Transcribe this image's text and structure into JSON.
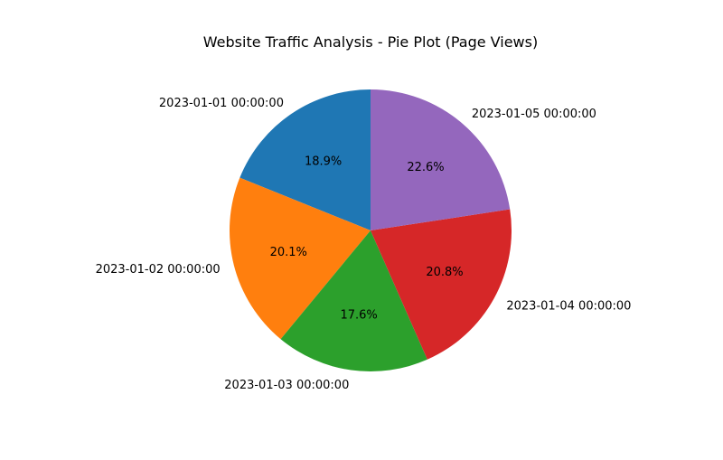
{
  "chart_data": {
    "type": "pie",
    "title": "Website Traffic Analysis - Pie Plot (Page Views)",
    "categories": [
      "2023-01-01 00:00:00",
      "2023-01-02 00:00:00",
      "2023-01-03 00:00:00",
      "2023-01-04 00:00:00",
      "2023-01-05 00:00:00"
    ],
    "values": [
      18.9,
      20.1,
      17.6,
      20.8,
      22.6
    ],
    "percent_labels": [
      "18.9%",
      "20.1%",
      "17.6%",
      "20.8%",
      "22.6%"
    ],
    "colors": [
      "#1f77b4",
      "#ff7f0e",
      "#2ca02c",
      "#d62728",
      "#9467bd"
    ],
    "start_angle_deg": 90,
    "direction": "counterclockwise"
  }
}
